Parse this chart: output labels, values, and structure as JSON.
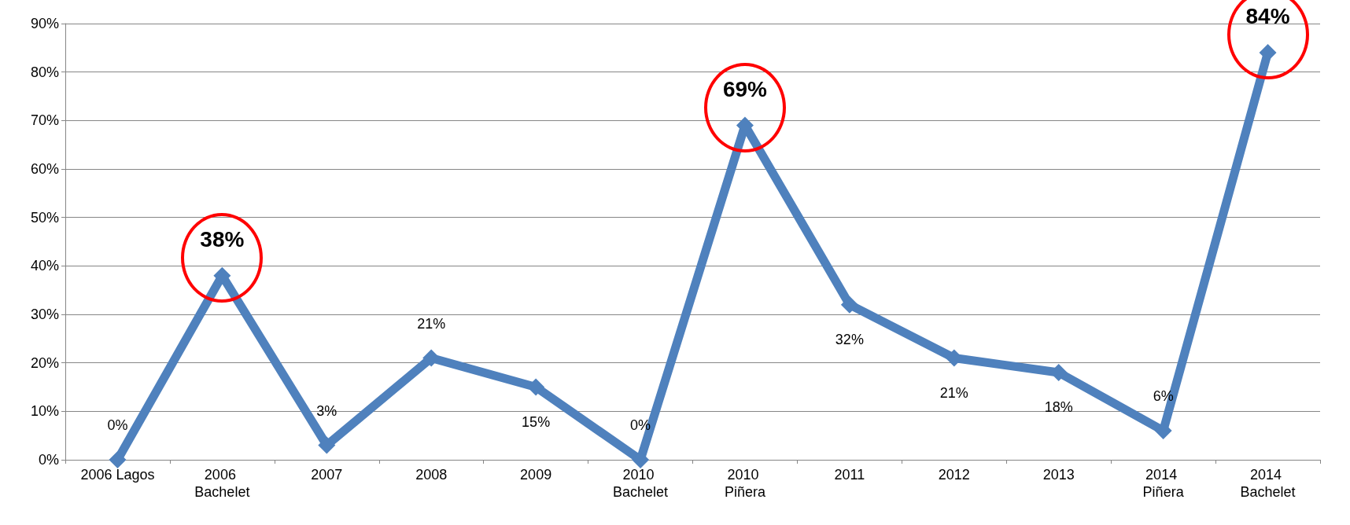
{
  "chart_data": {
    "type": "line",
    "categories": [
      "2006 Lagos",
      "2006 Bachelet",
      "2007",
      "2008",
      "2009",
      "2010 Bachelet",
      "2010 Piñera",
      "2011",
      "2012",
      "2013",
      "2014 Piñera",
      "2014 Bachelet"
    ],
    "series": [
      {
        "color": "#4f81bd",
        "values": [
          0,
          38,
          3,
          21,
          15,
          0,
          69,
          32,
          21,
          18,
          6,
          84
        ],
        "value_labels": [
          "0%",
          null,
          "3%",
          "21%",
          "15%",
          "0%",
          null,
          "32%",
          "21%",
          "18%",
          "6%",
          null
        ]
      }
    ],
    "ylim": [
      0,
      90
    ],
    "yticks": [
      {
        "value": 0,
        "label": "0%"
      },
      {
        "value": 10,
        "label": "10%"
      },
      {
        "value": 20,
        "label": "20%"
      },
      {
        "value": 30,
        "label": "30%"
      },
      {
        "value": 40,
        "label": "40%"
      },
      {
        "value": 50,
        "label": "50%"
      },
      {
        "value": 60,
        "label": "60%"
      },
      {
        "value": 70,
        "label": "70%"
      },
      {
        "value": 80,
        "label": "80%"
      },
      {
        "value": 90,
        "label": "90%"
      }
    ],
    "grid": "y",
    "marker": "diamond",
    "annotations": [
      {
        "text": "38%",
        "x": "2006 Bachelet",
        "y": 38
      },
      {
        "text": "69%",
        "x": "2010 Piñera",
        "y": 69
      },
      {
        "text": "84%",
        "x": "2014 Bachelet",
        "y": 84
      }
    ]
  }
}
